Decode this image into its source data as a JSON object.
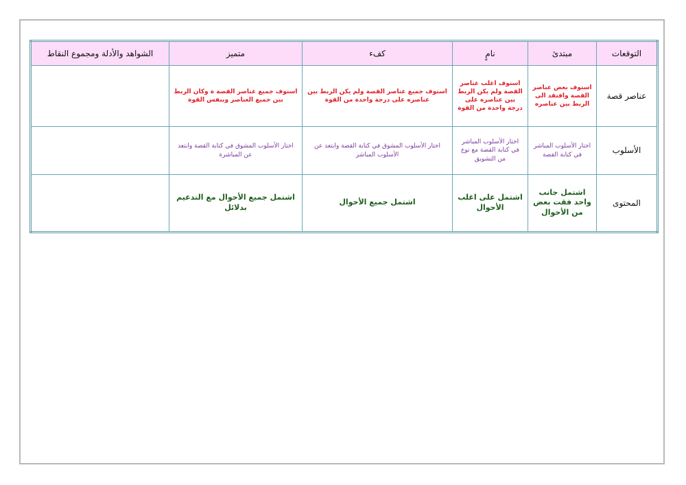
{
  "table": {
    "headers": [
      "التوقعات",
      "مبتدئ",
      "نامٍ",
      "كفء",
      "متميز",
      "الشواهد والأدلة ومجموع النقاط"
    ],
    "rows": [
      {
        "label": "عناصر قصة",
        "cells": [
          "استوف بعض عناصر القصة وافتقد الى الربط بين عناصره",
          "استوف اغلب عناصر القصة ولم يكن الربط بين عناصره على درجة واحدة من القوة",
          "استوف جميع عناصر القصة ولم يكن الربط بين عناصره على درجة واحدة من القوة",
          "استوف جميع عناصر القصة ة وكان الربط بين جميع العناصر وبنفس القوة",
          ""
        ]
      },
      {
        "label": "الأسلوب",
        "cells": [
          "اختار الأسلوب المباشر في كتابة القصة",
          "اختار الأسلوب المباشر في كتابة القصة مع نوع من التشويق",
          "اختار الأسلوب المشوق في كتابة القصة وابتعد عن الأسلوب المباشر",
          "اختار الأسلوب المشوق في كتابة القصة وابتعد عن المباشرة",
          ""
        ]
      },
      {
        "label": "المحتوى",
        "cells": [
          "اشتمل جانب واحد فقت بعض من الأحوال",
          "اشتمل على اغلب الأحوال",
          "اشتمل جميع الأحوال",
          "اشتمل جميع الأحوال مع التدعيم بدلائل",
          ""
        ]
      }
    ]
  },
  "colors": {
    "header_bg": "#fcdcf8",
    "row1_text": "#e0202a",
    "row2_text": "#7b3aa0",
    "row3_text": "#1f5e1f",
    "border": "#6aa6b4"
  }
}
